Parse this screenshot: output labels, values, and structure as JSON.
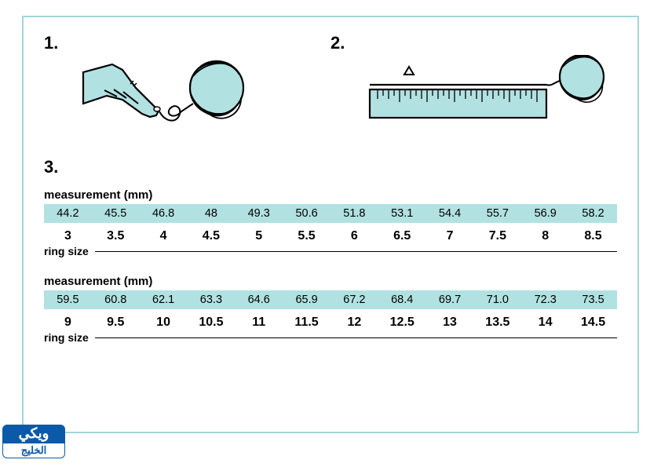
{
  "colors": {
    "accent_light": "#b2e1e1",
    "border": "#a3d6d6",
    "text": "#000000",
    "watermark_bg": "#0b5aa8",
    "watermark_text": "#ffffff"
  },
  "steps": {
    "one": "1.",
    "two": "2.",
    "three": "3."
  },
  "table": {
    "measurement_label": "measurement (mm)",
    "ringsize_label": "ring size",
    "row1_mm": [
      "44.2",
      "45.5",
      "46.8",
      "48",
      "49.3",
      "50.6",
      "51.8",
      "53.1",
      "54.4",
      "55.7",
      "56.9",
      "58.2"
    ],
    "row1_size": [
      "3",
      "3.5",
      "4",
      "4.5",
      "5",
      "5.5",
      "6",
      "6.5",
      "7",
      "7.5",
      "8",
      "8.5"
    ],
    "row2_mm": [
      "59.5",
      "60.8",
      "62.1",
      "63.3",
      "64.6",
      "65.9",
      "67.2",
      "68.4",
      "69.7",
      "71.0",
      "72.3",
      "73.5"
    ],
    "row2_size": [
      "9",
      "9.5",
      "10",
      "10.5",
      "11",
      "11.5",
      "12",
      "12.5",
      "13",
      "13.5",
      "14",
      "14.5"
    ]
  },
  "watermark": {
    "top": "ويكي",
    "bottom": "الخليج"
  }
}
